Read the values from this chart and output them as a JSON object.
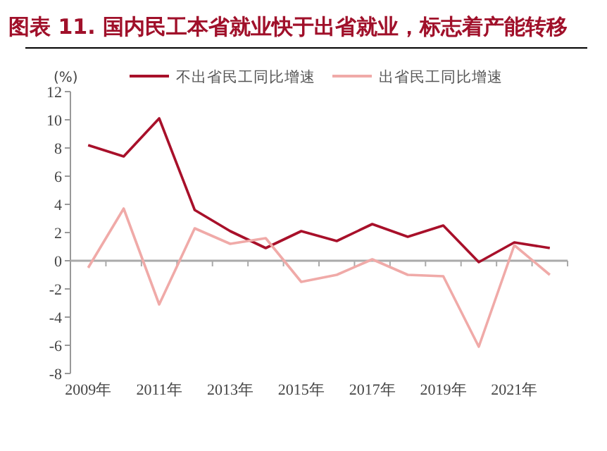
{
  "chart_data": {
    "type": "line",
    "title": "图表 11. 国内民工本省就业快于出省就业，标志着产能转移",
    "ylabel": "(%)",
    "categories": [
      "2009年",
      null,
      "2011年",
      null,
      "2013年",
      null,
      "2015年",
      null,
      "2017年",
      null,
      "2019年",
      null,
      "2021年",
      null
    ],
    "series": [
      {
        "name": "不出省民工同比增速",
        "color": "#a8102a",
        "values": [
          8.2,
          7.4,
          10.1,
          3.6,
          2.1,
          0.9,
          2.1,
          1.4,
          2.6,
          1.7,
          2.5,
          -0.1,
          1.3,
          0.9
        ]
      },
      {
        "name": "出省民工同比增速",
        "color": "#f0aaa8",
        "values": [
          -0.5,
          3.7,
          -3.1,
          2.3,
          1.2,
          1.6,
          -1.5,
          -1.0,
          0.1,
          -1.0,
          -1.1,
          -6.1,
          1.1,
          -1.0
        ]
      }
    ],
    "ylim": [
      -8,
      12
    ],
    "yticks": [
      -8,
      -6,
      -4,
      -2,
      0,
      2,
      4,
      6,
      8,
      10,
      12
    ],
    "legend": "top"
  }
}
